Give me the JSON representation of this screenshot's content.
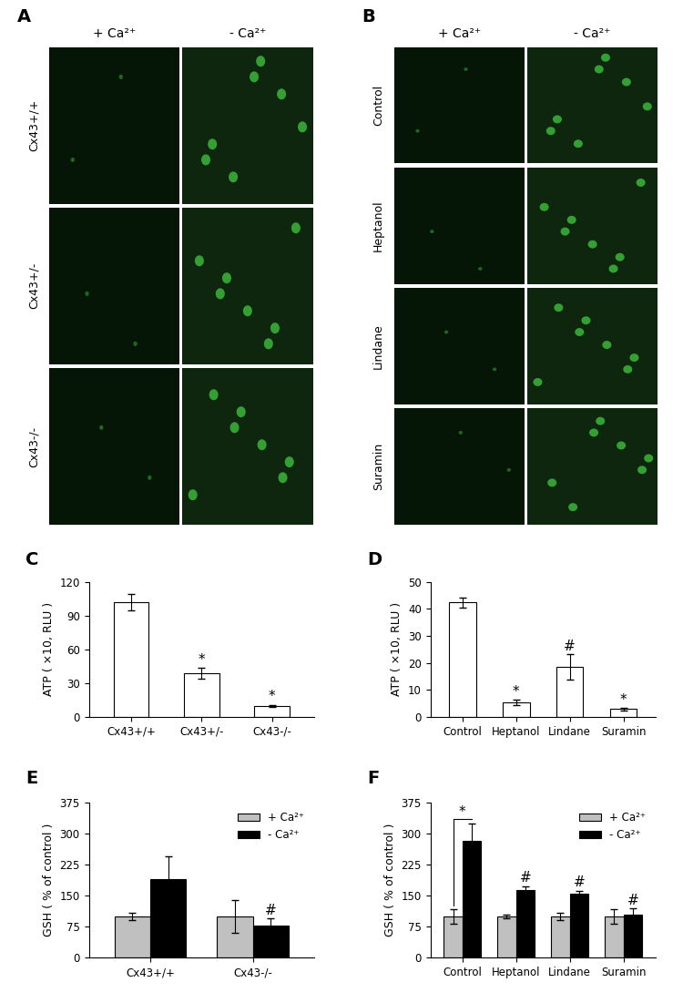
{
  "images": [
    {
      "title": "A",
      "columns": [
        "+ Ca²⁺",
        "- Ca²⁺"
      ],
      "rows": [
        "Cx43+/+",
        "Cx43+/-",
        "Cx43-/-"
      ]
    },
    {
      "title": "B",
      "columns": [
        "+ Ca²⁺",
        "- Ca²⁺"
      ],
      "rows": [
        "Control",
        "Heptanol",
        "Lindane",
        "Suramin"
      ]
    }
  ],
  "chart_data": [
    {
      "type": "bar",
      "title": "C",
      "y_label": "ATP ( ×10, RLU )",
      "categories": [
        "Cx43+/+",
        "Cx43+/-",
        "Cx43-/-"
      ],
      "values": [
        102,
        39,
        10
      ],
      "errors": [
        7,
        5,
        1
      ],
      "annotations": [
        null,
        "*",
        "*"
      ],
      "color": "#ffffff",
      "ylim": [
        0,
        120
      ],
      "yticks": [
        0,
        30,
        60,
        90,
        120
      ]
    },
    {
      "type": "bar",
      "title": "D",
      "y_label": "ATP ( ×10, RLU )",
      "categories": [
        "Control",
        "Heptanol",
        "Lindane",
        "Suramin"
      ],
      "values": [
        42.3,
        5.5,
        18.5,
        3
      ],
      "errors": [
        1.8,
        1,
        4.8,
        0.5
      ],
      "annotations": [
        null,
        "*",
        "#",
        "*"
      ],
      "color": "#ffffff",
      "ylim": [
        0,
        50
      ],
      "yticks": [
        0,
        10,
        20,
        30,
        40,
        50
      ]
    },
    {
      "type": "bar",
      "title": "E",
      "y_label": "GSH ( % of control )",
      "categories": [
        "Cx43+/+",
        "Cx43-/-"
      ],
      "series": [
        {
          "name": "+ Ca²⁺",
          "color": "#c0c0c0",
          "values": [
            100,
            100
          ],
          "errors": [
            8,
            40
          ],
          "annotations": [
            null,
            null
          ]
        },
        {
          "name": "- Ca²⁺",
          "color": "#000000",
          "values": [
            190,
            78
          ],
          "errors": [
            55,
            17
          ],
          "annotations": [
            null,
            "#"
          ]
        }
      ],
      "legend": "upper right",
      "ylim": [
        0,
        375
      ],
      "yticks": [
        0,
        75,
        150,
        225,
        300,
        375
      ]
    },
    {
      "type": "bar",
      "title": "F",
      "y_label": "GSH ( % of control )",
      "categories": [
        "Control",
        "Heptanol",
        "Lindane",
        "Suramin"
      ],
      "series": [
        {
          "name": "+ Ca²⁺",
          "color": "#c0c0c0",
          "values": [
            100,
            100,
            100,
            100
          ],
          "errors": [
            17,
            5,
            8,
            18
          ],
          "annotations": [
            null,
            null,
            null,
            null
          ]
        },
        {
          "name": "- Ca²⁺",
          "color": "#000000",
          "values": [
            283,
            163,
            155,
            105
          ],
          "errors": [
            42,
            10,
            7,
            15
          ],
          "annotations": [
            null,
            "#",
            "#",
            "#"
          ]
        }
      ],
      "comparisons": [
        {
          "category": "Control",
          "label": "*"
        }
      ],
      "legend": "upper right",
      "ylim": [
        0,
        375
      ],
      "yticks": [
        0,
        75,
        150,
        225,
        300,
        375
      ]
    }
  ]
}
